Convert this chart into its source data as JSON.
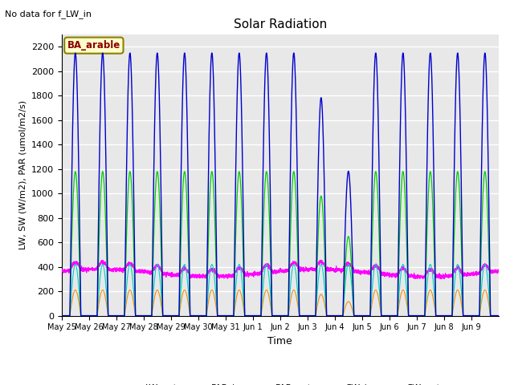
{
  "title": "Solar Radiation",
  "xlabel": "Time",
  "ylabel": "LW, SW (W/m2), PAR (umol/m2/s)",
  "note": "No data for f_LW_in",
  "legend_label": "BA_arable",
  "ylim": [
    0,
    2300
  ],
  "series_colors": {
    "LW_out": "#ff00ff",
    "PAR_in": "#0000cc",
    "PAR_out": "#00cccc",
    "SW_in": "#00cc00",
    "SW_out": "#ff8800"
  },
  "n_days": 16,
  "background_color": "#e8e8e8",
  "grid_color": "#ffffff",
  "tick_labels": [
    "May 25",
    "May 26",
    "May 27",
    "May 28",
    "May 29",
    "May 30",
    "May 31",
    "Jun 1",
    "Jun 2",
    "Jun 3",
    "Jun 4",
    "Jun 5",
    "Jun 6",
    "Jun 7",
    "Jun 8",
    "Jun 9"
  ]
}
